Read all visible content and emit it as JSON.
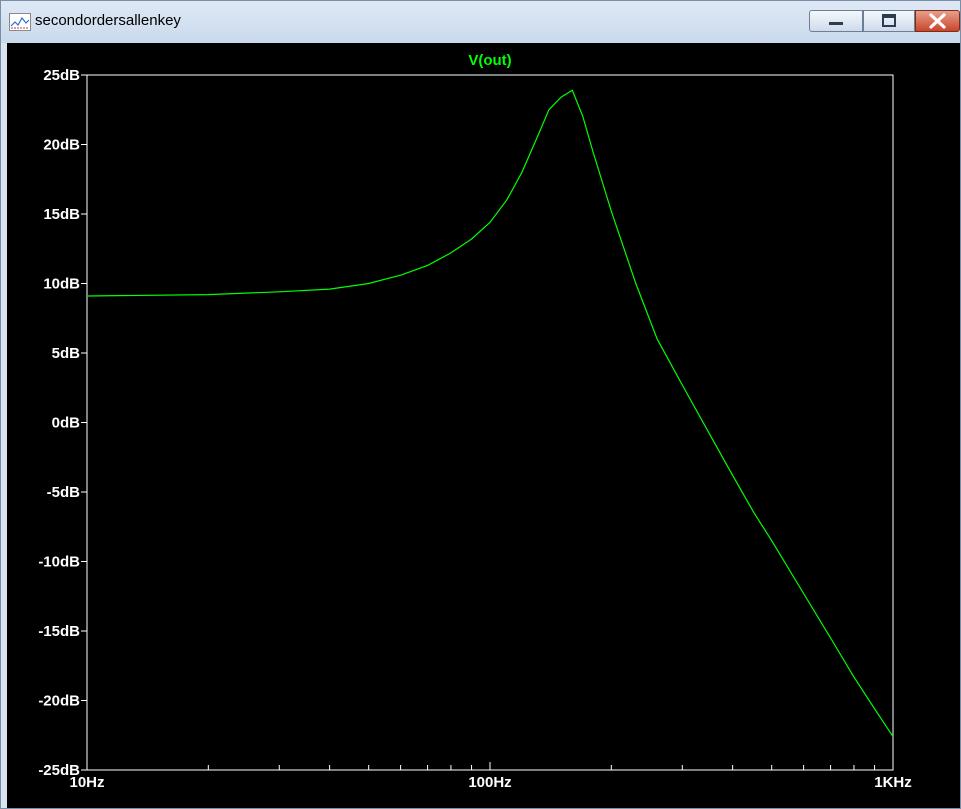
{
  "window": {
    "title": "secondordersallenkey",
    "controls": {
      "minimize": "minimize",
      "maximize": "maximize",
      "close": "close"
    }
  },
  "colors": {
    "trace": "#00ff00",
    "background": "#000000",
    "axis": "#ffffff",
    "close_button": "#c9452a"
  },
  "chart_data": {
    "type": "line",
    "title": "V(out)",
    "xlabel": "",
    "ylabel": "",
    "x_scale": "log",
    "xlim": [
      10,
      1000
    ],
    "ylim": [
      -25,
      25
    ],
    "x_ticks": [
      {
        "value": 10,
        "label": "10Hz"
      },
      {
        "value": 100,
        "label": "100Hz"
      },
      {
        "value": 1000,
        "label": "1KHz"
      }
    ],
    "y_ticks": [
      {
        "value": 25,
        "label": "25dB"
      },
      {
        "value": 20,
        "label": "20dB"
      },
      {
        "value": 15,
        "label": "15dB"
      },
      {
        "value": 10,
        "label": "10dB"
      },
      {
        "value": 5,
        "label": "5dB"
      },
      {
        "value": 0,
        "label": "0dB"
      },
      {
        "value": -5,
        "label": "-5dB"
      },
      {
        "value": -10,
        "label": "-10dB"
      },
      {
        "value": -15,
        "label": "-15dB"
      },
      {
        "value": -20,
        "label": "-20dB"
      },
      {
        "value": -25,
        "label": "-25dB"
      }
    ],
    "grid": false,
    "series": [
      {
        "name": "V(out)",
        "x": [
          10,
          20,
          30,
          40,
          50,
          60,
          70,
          80,
          90,
          100,
          110,
          120,
          130,
          140,
          150,
          160,
          170,
          180,
          200,
          230,
          260,
          300,
          350,
          400,
          450,
          500,
          600,
          700,
          800,
          900,
          1000
        ],
        "y": [
          9.1,
          9.2,
          9.4,
          9.6,
          10.0,
          10.6,
          11.3,
          12.2,
          13.2,
          14.4,
          16.0,
          18.0,
          20.3,
          22.5,
          23.4,
          23.9,
          22.0,
          19.5,
          15.2,
          10.0,
          6.0,
          2.7,
          -0.8,
          -3.8,
          -6.4,
          -8.5,
          -12.3,
          -15.5,
          -18.3,
          -20.6,
          -22.6
        ]
      }
    ]
  }
}
